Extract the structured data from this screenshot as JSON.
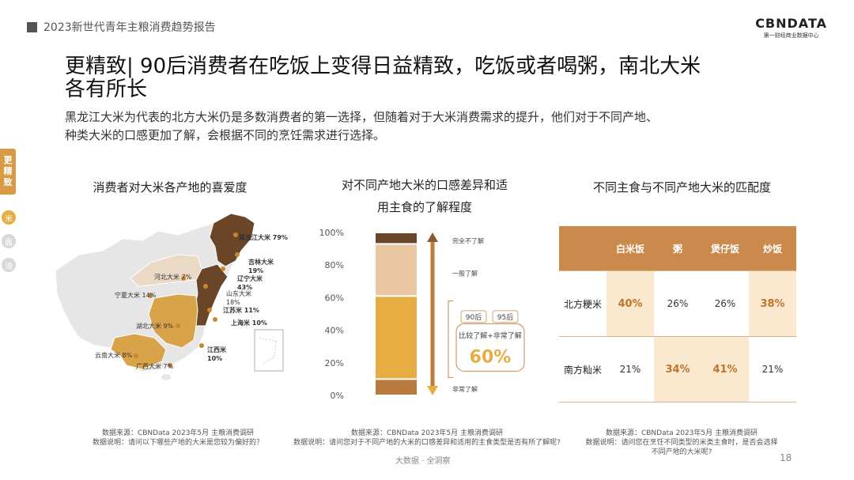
{
  "header": {
    "report_title": "2023新世代青年主粮消费趋势报告",
    "logo_main": "CBNDATA",
    "logo_sub": "第一财经商业数据中心"
  },
  "title_line1": "更精致| 90后消费者在吃饭上变得日益精致，吃饭或者喝粥，南北大米",
  "title_line2": "各有所长",
  "description_line1": "黑龙江大米为代表的北方大米仍是多数消费者的第一选择，但随着对于大米消费需求的提升，他们对于不同产地、",
  "description_line2": "种类大米的口感更加了解，会根据不同的烹饪需求进行选择。",
  "side_nav": {
    "active": "更\n精\n致",
    "items": [
      "米",
      "面",
      "油"
    ]
  },
  "map_panel": {
    "title": "消费者对大米各产地的喜爱度",
    "labels": [
      {
        "text": "黑龙江大米 79%",
        "bold": true
      },
      {
        "text": "吉林大米\n19%",
        "bold": true
      },
      {
        "text": "辽宁大米\n43%",
        "bold": true
      },
      {
        "text": "山东大米\n18%",
        "bold": false
      },
      {
        "text": "江苏米 11%",
        "bold": true
      },
      {
        "text": "上海米 10%",
        "bold": true
      },
      {
        "text": "河北大米 7%",
        "bold": false
      },
      {
        "text": "宁夏大米 14%",
        "bold": false
      },
      {
        "text": "湖北大米 9%",
        "bold": false
      },
      {
        "text": "江西米\n10%",
        "bold": true
      },
      {
        "text": "云南大米 8%",
        "bold": false
      },
      {
        "text": "广西大米 7%",
        "bold": false
      }
    ],
    "colors": {
      "dark": "#6b4528",
      "mid": "#d9a34a",
      "light": "#ead9c4",
      "empty": "#e6e6e6"
    },
    "source": "数据来源：CBNData 2023年5月 主粮消费调研",
    "note": "数据说明：请问以下哪些产地的大米是您较为偏好的？"
  },
  "chart_data": {
    "type": "bar",
    "title_line1": "对不同产地大米的口感差异和适",
    "title_line2": "用主食的了解程度",
    "y_ticks": [
      "100%",
      "80%",
      "60%",
      "40%",
      "20%",
      "0%"
    ],
    "ylim": [
      0,
      100
    ],
    "segments": [
      {
        "name": "非常了解",
        "value": 10,
        "color": "#b87a3e"
      },
      {
        "name": "比较了解",
        "value": 51,
        "color": "#e6ae42"
      },
      {
        "name": "一般了解",
        "value": 32,
        "color": "#e8c7a2"
      },
      {
        "name": "完全不了解",
        "value": 7,
        "color": "#6b4528"
      }
    ],
    "arrow_labels": {
      "top": "完全不了解",
      "middle": "一般了解",
      "bottom": "非常了解"
    },
    "callout": {
      "tag1": "90后",
      "tag2": "95后",
      "label": "比较了解+非常了解",
      "value": "60%"
    },
    "source": "数据来源：CBNData 2023年5月 主粮消费调研",
    "note": "数据说明：请问您对于不同产地的大米的口感差异和适用的主食类型是否有所了解呢?"
  },
  "match_panel": {
    "title": "不同主食与不同产地大米的匹配度",
    "columns": [
      "",
      "白米饭",
      "粥",
      "煲仔饭",
      "炒饭"
    ],
    "rows": [
      {
        "name": "北方粳米",
        "cells": [
          "40%",
          "26%",
          "26%",
          "38%"
        ],
        "highlight": [
          true,
          false,
          false,
          true
        ]
      },
      {
        "name": "南方籼米",
        "cells": [
          "21%",
          "34%",
          "41%",
          "21%"
        ],
        "highlight": [
          false,
          true,
          true,
          false
        ]
      }
    ],
    "colors": {
      "header": "#c98a4b",
      "highlight_bg": "#fbe9cf",
      "highlight_text": "#c0732a"
    },
    "source": "数据来源：CBNData 2023年5月 主粮消费调研",
    "note_line1": "数据说明：请问您在烹饪不同类型的米类主食时，是否会选择",
    "note_line2": "不同产地的大米呢?"
  },
  "footer": {
    "slogan": "大数据 · 全洞察",
    "page": "18"
  }
}
